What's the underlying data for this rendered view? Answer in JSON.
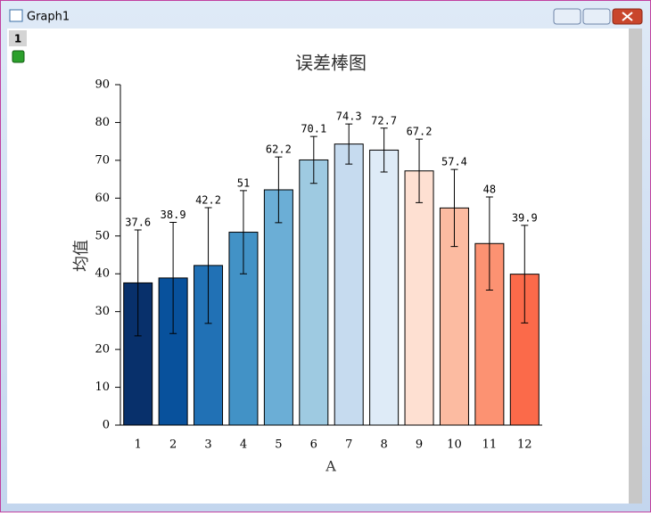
{
  "window": {
    "title": "Graph1",
    "layer": "1"
  },
  "chart_data": {
    "type": "bar",
    "title": "误差棒图",
    "x_label": "A",
    "y_label": "均值",
    "categories": [
      "1",
      "2",
      "3",
      "4",
      "5",
      "6",
      "7",
      "8",
      "9",
      "10",
      "11",
      "12"
    ],
    "values": [
      37.6,
      38.9,
      42.2,
      51,
      62.2,
      70.1,
      74.3,
      72.7,
      67.2,
      57.4,
      48,
      39.9
    ],
    "errors": [
      14,
      14.7,
      15.3,
      11,
      8.7,
      6.2,
      5.3,
      5.8,
      8.4,
      10.2,
      12.3,
      12.9
    ],
    "colors": [
      "#08306b",
      "#08519c",
      "#2171b5",
      "#4292c6",
      "#6baed6",
      "#9ecae1",
      "#c6dbef",
      "#deebf7",
      "#fee0d2",
      "#fcbba1",
      "#fc9272",
      "#fb6a4a"
    ],
    "ylim": [
      0,
      90
    ],
    "yticks": [
      0,
      10,
      20,
      30,
      40,
      50,
      60,
      70,
      80,
      90
    ],
    "grid": false
  }
}
